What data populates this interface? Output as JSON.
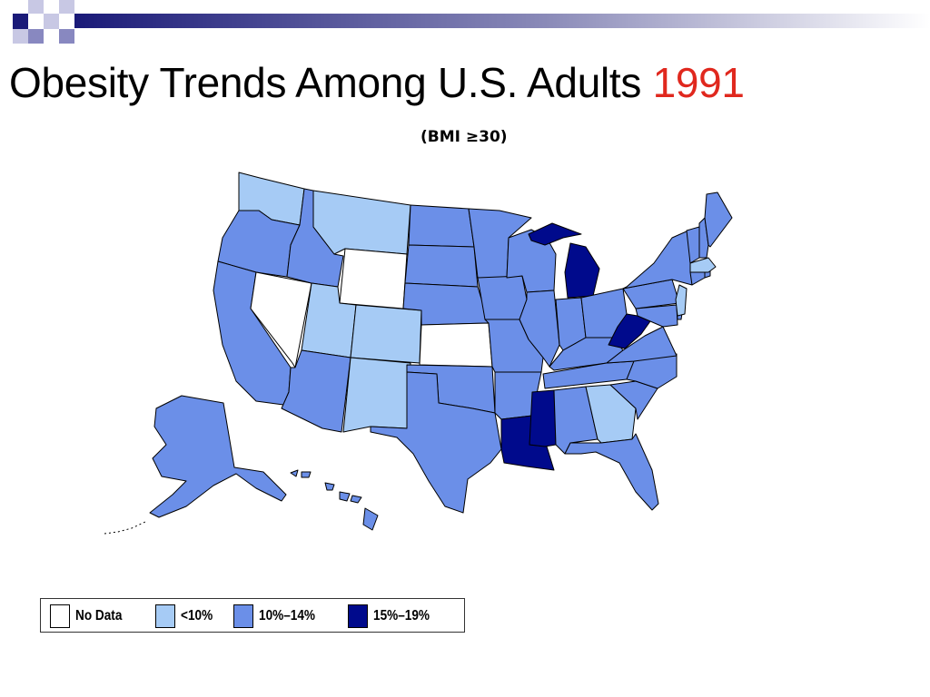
{
  "slide": {
    "title": "Obesity Trends Among U.S. Adults",
    "title_year": "1991",
    "subtitle": "(BMI ≥30)"
  },
  "colors": {
    "no_data": "#ffffff",
    "under_10": "#a6cbf5",
    "10_14": "#6b8fe8",
    "15_19": "#000a8c",
    "title_year": "#e0281e",
    "deco_navy": "#1a1a78"
  },
  "map": {
    "states": {
      "WA": "<10%",
      "OR": "10%–14%",
      "CA": "10%–14%",
      "NV": "No Data",
      "ID": "10%–14%",
      "MT": "<10%",
      "WY": "No Data",
      "UT": "<10%",
      "CO": "<10%",
      "AZ": "10%–14%",
      "NM": "<10%",
      "ND": "10%–14%",
      "SD": "10%–14%",
      "NE": "10%–14%",
      "KS": "No Data",
      "OK": "10%–14%",
      "TX": "10%–14%",
      "MN": "10%–14%",
      "IA": "10%–14%",
      "MO": "10%–14%",
      "AR": "10%–14%",
      "LA": "15%–19%",
      "WI": "10%–14%",
      "IL": "10%–14%",
      "MI": "15%–19%",
      "IN": "10%–14%",
      "OH": "10%–14%",
      "KY": "10%–14%",
      "TN": "10%–14%",
      "MS": "15%–19%",
      "AL": "10%–14%",
      "GA": "<10%",
      "FL": "10%–14%",
      "SC": "10%–14%",
      "NC": "10%–14%",
      "VA": "10%–14%",
      "WV": "15%–19%",
      "MD": "10%–14%",
      "DE": "10%–14%",
      "PA": "10%–14%",
      "NY": "10%–14%",
      "NJ": "<10%",
      "CT": "10%–14%",
      "RI": "10%–14%",
      "MA": "<10%",
      "VT": "10%–14%",
      "NH": "10%–14%",
      "ME": "10%–14%",
      "AK": "10%–14%",
      "HI": "10%–14%"
    }
  },
  "legend": {
    "items": [
      {
        "label": "No Data",
        "color": "#ffffff"
      },
      {
        "label": "<10%",
        "color": "#a6cbf5"
      },
      {
        "label": "10%–14%",
        "color": "#6b8fe8"
      },
      {
        "label": "15%–19%",
        "color": "#000a8c"
      }
    ]
  }
}
